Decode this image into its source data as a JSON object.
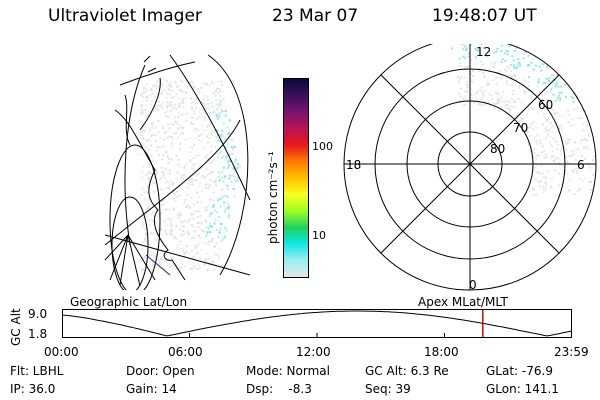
{
  "header": {
    "instrument": "Ultraviolet Imager",
    "date": "23 Mar 07",
    "time": "19:48:07 UT"
  },
  "colorbar": {
    "label": "photon cm⁻²s⁻¹",
    "ticks": [
      "100",
      "10"
    ],
    "colors": [
      "#0b0b3a",
      "#3a0f5a",
      "#7a1470",
      "#b81456",
      "#e8181e",
      "#ff7a00",
      "#ffc000",
      "#f8ff20",
      "#9cff20",
      "#20d060",
      "#10e6e6",
      "#9ef0f0",
      "#e0e8e8"
    ]
  },
  "polar": {
    "mlt_labels": {
      "top": "12",
      "left": "18",
      "right": "6",
      "bottom": "0"
    },
    "lat_labels": [
      "60",
      "70",
      "80"
    ]
  },
  "geo_label": "Geographic Lat/Lon",
  "apex_label": "Apex MLat/MLT",
  "alt_plot": {
    "ylabel": "GC Alt",
    "y_ticks": [
      "9.0",
      "1.8"
    ],
    "x_ticks": [
      "00:00",
      "06:00",
      "12:00",
      "18:00",
      "23:59"
    ],
    "marker_time": "19:48",
    "marker_color": "#e00000"
  },
  "status": {
    "row1": {
      "flt": "Flt: LBHL",
      "door": "Door: Open",
      "mode": "Mode: Normal",
      "gcalt": "GC Alt: 6.3 Re",
      "glat": "GLat: -76.9"
    },
    "row2": {
      "ip": "IP: 36.0",
      "gain": "Gain: 14",
      "dsp": "Dsp:    -8.3",
      "seq": "Seq: 39",
      "glon": "GLon: 141.1"
    }
  }
}
